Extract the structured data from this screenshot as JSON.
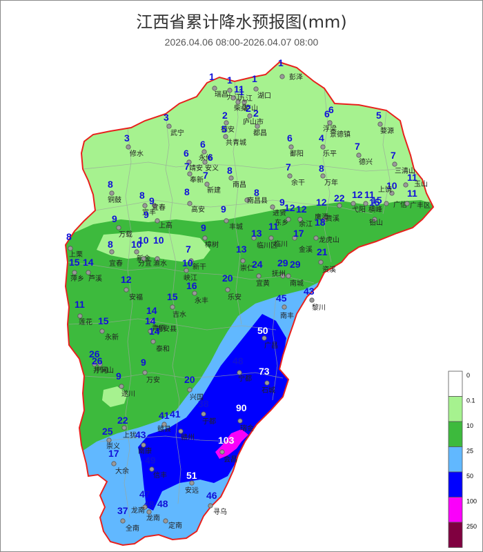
{
  "title": "江西省累计降水预报图(mm)",
  "subtitle": "2026.04.06 08:00-2026.04.07 08:00",
  "legend": {
    "items": [
      {
        "label": "0",
        "color": "#ffffff"
      },
      {
        "label": "0.1",
        "color": "#a6f28f"
      },
      {
        "label": "10",
        "color": "#3dba3d"
      },
      {
        "label": "25",
        "color": "#61b8ff"
      },
      {
        "label": "50",
        "color": "#0000fe"
      },
      {
        "label": "100",
        "color": "#fa00fa"
      },
      {
        "label": "250",
        "color": "#800040"
      }
    ]
  },
  "colors": {
    "border": "#e8201c",
    "county_lines": "#9aa89a",
    "value_text": "#1010d8"
  },
  "stations": [
    {
      "name": "彭泽",
      "value": "1"
    },
    {
      "name": "瑞昌",
      "value": "1"
    },
    {
      "name": "九江",
      "value": "1"
    },
    {
      "name": "柴桑",
      "value": "1"
    },
    {
      "name": "湖口",
      "value": "1"
    },
    {
      "name": "庐山",
      "value": "1"
    },
    {
      "name": "九江",
      "value": "1"
    },
    {
      "name": "德安",
      "value": "2"
    },
    {
      "name": "庐山市",
      "value": "2"
    },
    {
      "name": "武宁",
      "value": "3"
    },
    {
      "name": "共青城",
      "value": "5"
    },
    {
      "name": "都昌",
      "value": "2"
    },
    {
      "name": "浮梁",
      "value": "6"
    },
    {
      "name": "景德镇",
      "value": "6"
    },
    {
      "name": "婺源",
      "value": "5"
    },
    {
      "name": "修水",
      "value": "3"
    },
    {
      "name": "永修",
      "value": "6"
    },
    {
      "name": "鄱阳",
      "value": "6"
    },
    {
      "name": "乐平",
      "value": "4"
    },
    {
      "name": "德兴",
      "value": "7"
    },
    {
      "name": "三清山",
      "value": "7"
    },
    {
      "name": "靖安",
      "value": "6"
    },
    {
      "name": "安义",
      "value": "6"
    },
    {
      "name": "奉新",
      "value": "7"
    },
    {
      "name": "新建",
      "value": "7"
    },
    {
      "name": "南昌",
      "value": "8"
    },
    {
      "name": "余干",
      "value": "7"
    },
    {
      "name": "万年",
      "value": "8"
    },
    {
      "name": "玉山",
      "value": "11"
    },
    {
      "name": "上饶",
      "value": "10"
    },
    {
      "name": "铜鼓",
      "value": "8"
    },
    {
      "name": "宜丰",
      "value": "8"
    },
    {
      "name": "高安",
      "value": "8"
    },
    {
      "name": "南昌县",
      "value": "8"
    },
    {
      "name": "进贤",
      "value": "9"
    },
    {
      "name": "弋阳",
      "value": "12"
    },
    {
      "name": "横峰",
      "value": "11"
    },
    {
      "name": "广信",
      "value": "15"
    },
    {
      "name": "广丰区",
      "value": "11"
    },
    {
      "name": "宜春",
      "value": "9"
    },
    {
      "name": "上高",
      "value": "9"
    },
    {
      "name": "丰城",
      "value": "9"
    },
    {
      "name": "东乡",
      "value": "12"
    },
    {
      "name": "余江",
      "value": "12"
    },
    {
      "name": "鹰潭",
      "value": "12"
    },
    {
      "name": "贵溪",
      "value": "22"
    },
    {
      "name": "铅山",
      "value": "15"
    },
    {
      "name": "万载",
      "value": "9"
    },
    {
      "name": "樟树",
      "value": "9"
    },
    {
      "name": "临川",
      "value": "11"
    },
    {
      "name": "临川区",
      "value": "13"
    },
    {
      "name": "金溪",
      "value": "17"
    },
    {
      "name": "龙虎山",
      "value": "18"
    },
    {
      "name": "上栗",
      "value": "8"
    },
    {
      "name": "宜春",
      "value": "8"
    },
    {
      "name": "新余",
      "value": "10"
    },
    {
      "name": "分宜",
      "value": "10"
    },
    {
      "name": "渝水",
      "value": "10"
    },
    {
      "name": "新干",
      "value": "7"
    },
    {
      "name": "崇仁",
      "value": "13"
    },
    {
      "name": "资溪",
      "value": "21"
    },
    {
      "name": "萍乡",
      "value": "15"
    },
    {
      "name": "芦溪",
      "value": "14"
    },
    {
      "name": "峡江",
      "value": "10"
    },
    {
      "name": "宜黄",
      "value": "24"
    },
    {
      "name": "抚州",
      "value": "29"
    },
    {
      "name": "南城",
      "value": "29"
    },
    {
      "name": "安福",
      "value": "12"
    },
    {
      "name": "永丰",
      "value": "16"
    },
    {
      "name": "乐安",
      "value": "20"
    },
    {
      "name": "黎川",
      "value": "43"
    },
    {
      "name": "莲花",
      "value": "11"
    },
    {
      "name": "吉水",
      "value": "15"
    },
    {
      "name": "南丰",
      "value": "45"
    },
    {
      "name": "青原",
      "value": "14"
    },
    {
      "name": "吉安县",
      "value": "14"
    },
    {
      "name": "永新",
      "value": "15"
    },
    {
      "name": "泰和",
      "value": "14"
    },
    {
      "name": "广昌",
      "value": "50"
    },
    {
      "name": "宁冈",
      "value": "26"
    },
    {
      "name": "井冈山",
      "value": "26"
    },
    {
      "name": "万安",
      "value": "9"
    },
    {
      "name": "宁都",
      "value": "48"
    },
    {
      "name": "石城",
      "value": "73"
    },
    {
      "name": "遂川",
      "value": "9"
    },
    {
      "name": "兴国",
      "value": "20"
    },
    {
      "name": "瑞金",
      "value": "90"
    },
    {
      "name": "于都",
      "value": "38"
    },
    {
      "name": "赣县",
      "value": "41"
    },
    {
      "name": "赣州",
      "value": "41"
    },
    {
      "name": "上犹",
      "value": "22"
    },
    {
      "name": "崇义",
      "value": "25"
    },
    {
      "name": "南康",
      "value": "43"
    },
    {
      "name": "会昌",
      "value": "103"
    },
    {
      "name": "大余",
      "value": "17"
    },
    {
      "name": "信丰",
      "value": "49"
    },
    {
      "name": "安远",
      "value": "51"
    },
    {
      "name": "寻乌",
      "value": "46"
    },
    {
      "name": "龙南",
      "value": "48"
    },
    {
      "name": "定南",
      "value": "48"
    },
    {
      "name": "全南",
      "value": "37"
    },
    {
      "name": "龙南",
      "value": "47"
    }
  ]
}
